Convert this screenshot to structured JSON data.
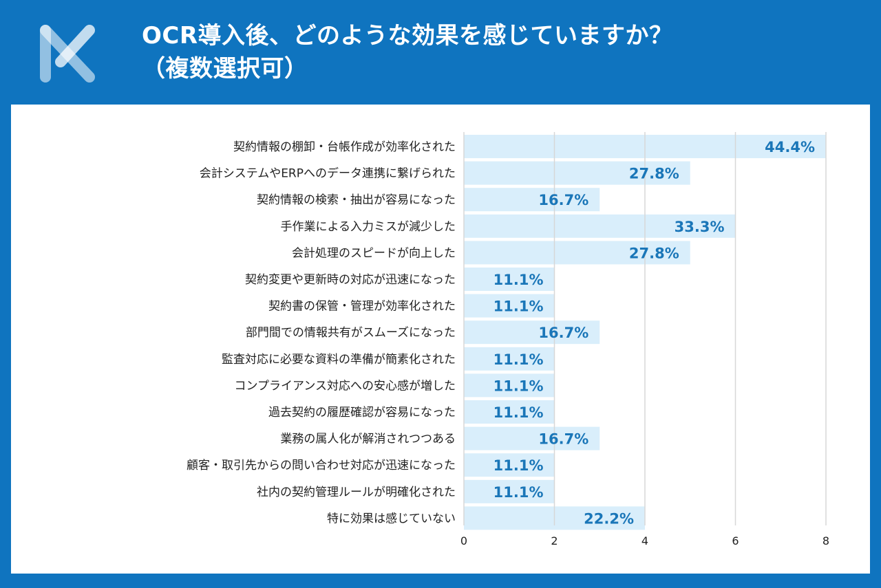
{
  "header": {
    "title_line1": "OCR導入後、どのような効果を感じていますか？",
    "title_line2": "（複数選択可）",
    "logo_icon": "brand-logo-icon"
  },
  "colors": {
    "frame": "#0f74bf",
    "bar_fill": "#d9eefb",
    "value_text": "#1a76b8",
    "grid": "#d7d7d7"
  },
  "chart_data": {
    "type": "bar",
    "orientation": "horizontal",
    "title": "OCR導入後、どのような効果を感じていますか？（複数選択可）",
    "xlabel": "",
    "ylabel": "",
    "xlim": [
      0,
      8
    ],
    "xticks": [
      0,
      2,
      4,
      6,
      8
    ],
    "categories": [
      "契約情報の棚卸・台帳作成が効率化された",
      "会計システムやERPへのデータ連携に繋げられた",
      "契約情報の検索・抽出が容易になった",
      "手作業による入力ミスが減少した",
      "会計処理のスピードが向上した",
      "契約変更や更新時の対応が迅速になった",
      "契約書の保管・管理が効率化された",
      "部門間での情報共有がスムーズになった",
      "監査対応に必要な資料の準備が簡素化された",
      "コンプライアンス対応への安心感が増した",
      "過去契約の履歴確認が容易になった",
      "業務の属人化が解消されつつある",
      "顧客・取引先からの問い合わせ対応が迅速になった",
      "社内の契約管理ルールが明確化された",
      "特に効果は感じていない"
    ],
    "values": [
      8,
      5,
      3,
      6,
      5,
      2,
      2,
      3,
      2,
      2,
      2,
      3,
      2,
      2,
      4
    ],
    "labels": [
      "44.4%",
      "27.8%",
      "16.7%",
      "33.3%",
      "27.8%",
      "11.1%",
      "11.1%",
      "16.7%",
      "11.1%",
      "11.1%",
      "11.1%",
      "16.7%",
      "11.1%",
      "11.1%",
      "22.2%"
    ],
    "grid": true
  }
}
